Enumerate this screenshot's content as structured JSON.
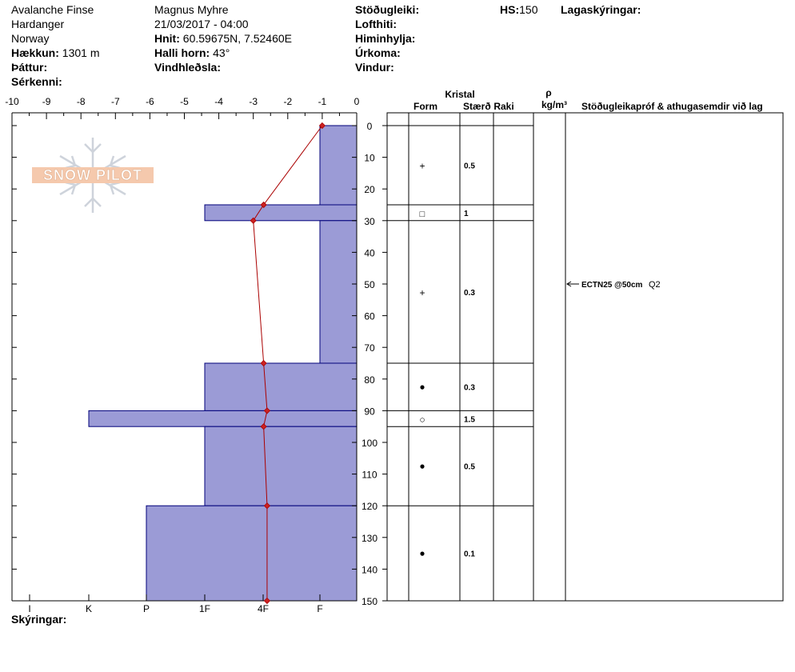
{
  "header": {
    "location": "Avalanche Finse",
    "region": "Hardanger",
    "country": "Norway",
    "elevation_label": "Hækkun:",
    "elevation_value": "1301 m",
    "factors_label": "Þáttur:",
    "features_label": "Sérkenni:",
    "observer": "Magnus Myhre",
    "datetime": "21/03/2017 - 04:00",
    "coords_label": "Hnit:",
    "coords_value": "60.59675N, 7.52460E",
    "slope_label": "Halli horn:",
    "slope_value": "43°",
    "wind_loading_label": "Vindhleðsla:",
    "stability_label": "Stöðugleiki:",
    "air_temp_label": "Lofthiti:",
    "sky_label": "Himinhylja:",
    "precip_label": "Úrkoma:",
    "wind_label": "Vindur:",
    "hs_label": "HS:",
    "hs_value": "150",
    "layer_notes_label": "Lagaskýringar:",
    "legend_label": "Skýringar:"
  },
  "logo": {
    "text": "SNOW PILOT"
  },
  "table_headers": {
    "crystal": "Kristal",
    "form": "Form",
    "size": "Stærð",
    "moisture": "Raki",
    "rho": "ρ",
    "density_unit": "kg/m³",
    "tests": "Stöðugleikapróf & athugasemdir við lag"
  },
  "colors": {
    "hardness_fill": "#9b9bd6",
    "hardness_stroke": "#00007a",
    "temp_line": "#aa0000",
    "temp_point": "#cc2222"
  },
  "chart_data": {
    "type": "snow_profile",
    "temperature_axis": {
      "ticks": [
        "-10",
        "-9",
        "-8",
        "-7",
        "-6",
        "-5",
        "-4",
        "-3",
        "-2",
        "-1",
        "0"
      ],
      "range": [
        -10,
        0
      ]
    },
    "depth_axis": {
      "ticks": [
        "0",
        "10",
        "20",
        "30",
        "40",
        "50",
        "60",
        "70",
        "80",
        "90",
        "100",
        "110",
        "120",
        "130",
        "140",
        "150"
      ],
      "range": [
        0,
        150
      ]
    },
    "hardness_axis": {
      "ticks": [
        "I",
        "K",
        "P",
        "1F",
        "4F",
        "F"
      ]
    },
    "hardness_layers": [
      {
        "top": 0,
        "bottom": 25,
        "hardness": "F"
      },
      {
        "top": 25,
        "bottom": 30,
        "hardness": "1F"
      },
      {
        "top": 30,
        "bottom": 75,
        "hardness": "F"
      },
      {
        "top": 75,
        "bottom": 90,
        "hardness": "1F"
      },
      {
        "top": 90,
        "bottom": 95,
        "hardness": "K+"
      },
      {
        "top": 95,
        "bottom": 120,
        "hardness": "1F"
      },
      {
        "top": 120,
        "bottom": 150,
        "hardness": "P"
      }
    ],
    "temperature_profile": [
      {
        "depth": 0,
        "temp": -1.0
      },
      {
        "depth": 25,
        "temp": -2.7
      },
      {
        "depth": 30,
        "temp": -3.0
      },
      {
        "depth": 75,
        "temp": -2.7
      },
      {
        "depth": 90,
        "temp": -2.6
      },
      {
        "depth": 95,
        "temp": -2.7
      },
      {
        "depth": 120,
        "temp": -2.6
      },
      {
        "depth": 150,
        "temp": -2.6
      }
    ],
    "layers": [
      {
        "top": 0,
        "bottom": 25,
        "form_symbol": "+",
        "size": "0.5"
      },
      {
        "top": 25,
        "bottom": 30,
        "form_symbol": "□",
        "size": "1"
      },
      {
        "top": 30,
        "bottom": 75,
        "form_symbol": "+",
        "size": "0.3"
      },
      {
        "top": 75,
        "bottom": 90,
        "form_symbol": "●",
        "size": "0.3"
      },
      {
        "top": 90,
        "bottom": 95,
        "form_symbol": "○",
        "size": "1.5"
      },
      {
        "top": 95,
        "bottom": 120,
        "form_symbol": "●",
        "size": "0.5"
      },
      {
        "top": 120,
        "bottom": 150,
        "form_symbol": "●",
        "size": "0.1"
      }
    ],
    "tests": [
      {
        "depth": 50,
        "text": "ECTN25 @50cm",
        "quality": "Q2"
      }
    ]
  }
}
